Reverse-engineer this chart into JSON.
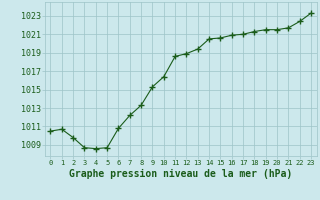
{
  "x": [
    0,
    1,
    2,
    3,
    4,
    5,
    6,
    7,
    8,
    9,
    10,
    11,
    12,
    13,
    14,
    15,
    16,
    17,
    18,
    19,
    20,
    21,
    22,
    23
  ],
  "y": [
    1010.5,
    1010.7,
    1009.8,
    1008.7,
    1008.6,
    1008.7,
    1010.8,
    1012.2,
    1013.3,
    1015.3,
    1016.4,
    1018.6,
    1018.9,
    1019.4,
    1020.5,
    1020.6,
    1020.9,
    1021.0,
    1021.3,
    1021.5,
    1021.5,
    1021.7,
    1022.4,
    1023.3
  ],
  "line_color": "#1a5c1a",
  "marker": "+",
  "marker_color": "#1a5c1a",
  "bg_color": "#cce8ec",
  "grid_color": "#9dc4c8",
  "xlabel": "Graphe pression niveau de la mer (hPa)",
  "xlabel_color": "#1a5c1a",
  "xlabel_fontsize": 7,
  "tick_color": "#1a5c1a",
  "ytick_fontsize": 6,
  "xtick_fontsize": 5,
  "ylim": [
    1007.8,
    1024.5
  ],
  "yticks": [
    1009,
    1011,
    1013,
    1015,
    1017,
    1019,
    1021,
    1023
  ],
  "xticks": [
    0,
    1,
    2,
    3,
    4,
    5,
    6,
    7,
    8,
    9,
    10,
    11,
    12,
    13,
    14,
    15,
    16,
    17,
    18,
    19,
    20,
    21,
    22,
    23
  ]
}
